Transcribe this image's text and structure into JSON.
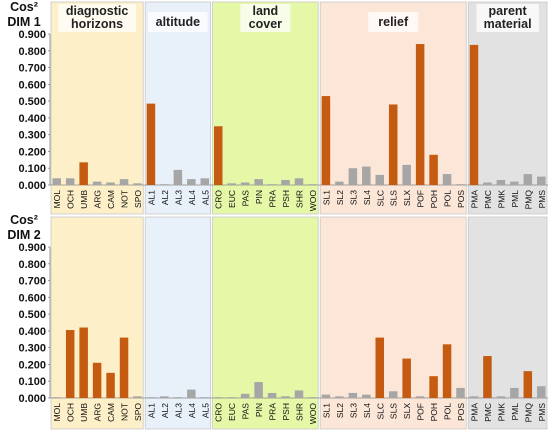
{
  "chart_data": {
    "type": "bar",
    "categories": [
      "MOL",
      "OCH",
      "UMB",
      "ARG",
      "CAM",
      "NOT",
      "SPO",
      "AL1",
      "AL2",
      "AL3",
      "AL4",
      "AL5",
      "CRO",
      "EUC",
      "PAS",
      "PIN",
      "PRA",
      "PSH",
      "SHR",
      "WOO",
      "SL1",
      "SL2",
      "SL3",
      "SL4",
      "SLC",
      "SLS",
      "SLX",
      "POF",
      "POH",
      "POL",
      "POS",
      "PMA",
      "PMC",
      "PMK",
      "PML",
      "PMQ",
      "PMS"
    ],
    "y_ticks": [
      "0.000",
      "0.100",
      "0.200",
      "0.300",
      "0.400",
      "0.500",
      "0.600",
      "0.700",
      "0.800",
      "0.900"
    ],
    "ylim": [
      0,
      0.9
    ],
    "colors": {
      "highlight": "#c55a11",
      "normal": "#a6a6a6"
    },
    "groups": [
      {
        "label": "diagnostic horizons",
        "lines": [
          "diagnostic",
          "horizons"
        ],
        "start": 0,
        "end": 6,
        "color": "#fdf0c8"
      },
      {
        "label": "altitude",
        "lines": [
          "altitude"
        ],
        "start": 7,
        "end": 11,
        "color": "#e8f0fa"
      },
      {
        "label": "land cover",
        "lines": [
          "land",
          "cover"
        ],
        "start": 12,
        "end": 19,
        "color": "#e4f8a8"
      },
      {
        "label": "relief",
        "lines": [
          "relief"
        ],
        "start": 20,
        "end": 30,
        "color": "#fbe6d8"
      },
      {
        "label": "parent material",
        "lines": [
          "parent",
          "material"
        ],
        "start": 31,
        "end": 36,
        "color": "#e2e2e2"
      }
    ],
    "panels": [
      {
        "title_line1": "Cos²",
        "title_line2": "DIM 1",
        "values": [
          0.04,
          0.04,
          0.135,
          0.02,
          0.015,
          0.035,
          0.01,
          0.485,
          0.005,
          0.09,
          0.035,
          0.04,
          0.35,
          0.01,
          0.015,
          0.035,
          0.005,
          0.03,
          0.04,
          0.005,
          0.53,
          0.02,
          0.1,
          0.11,
          0.06,
          0.48,
          0.12,
          0.84,
          0.18,
          0.065,
          0.005,
          0.835,
          0.015,
          0.03,
          0.02,
          0.065,
          0.05
        ],
        "highlight": [
          2,
          7,
          12,
          20,
          25,
          27,
          28,
          31
        ]
      },
      {
        "title_line1": "Cos²",
        "title_line2": "DIM 2",
        "values": [
          0.005,
          0.405,
          0.42,
          0.21,
          0.15,
          0.36,
          0.01,
          0.005,
          0.01,
          0.005,
          0.05,
          0.005,
          0.005,
          0.005,
          0.025,
          0.095,
          0.03,
          0.01,
          0.045,
          0.005,
          0.02,
          0.01,
          0.03,
          0.02,
          0.36,
          0.04,
          0.235,
          0.01,
          0.13,
          0.32,
          0.06,
          0.01,
          0.25,
          0.01,
          0.06,
          0.16,
          0.07
        ],
        "highlight": [
          1,
          2,
          3,
          4,
          5,
          24,
          26,
          28,
          29,
          32,
          35
        ]
      }
    ]
  }
}
